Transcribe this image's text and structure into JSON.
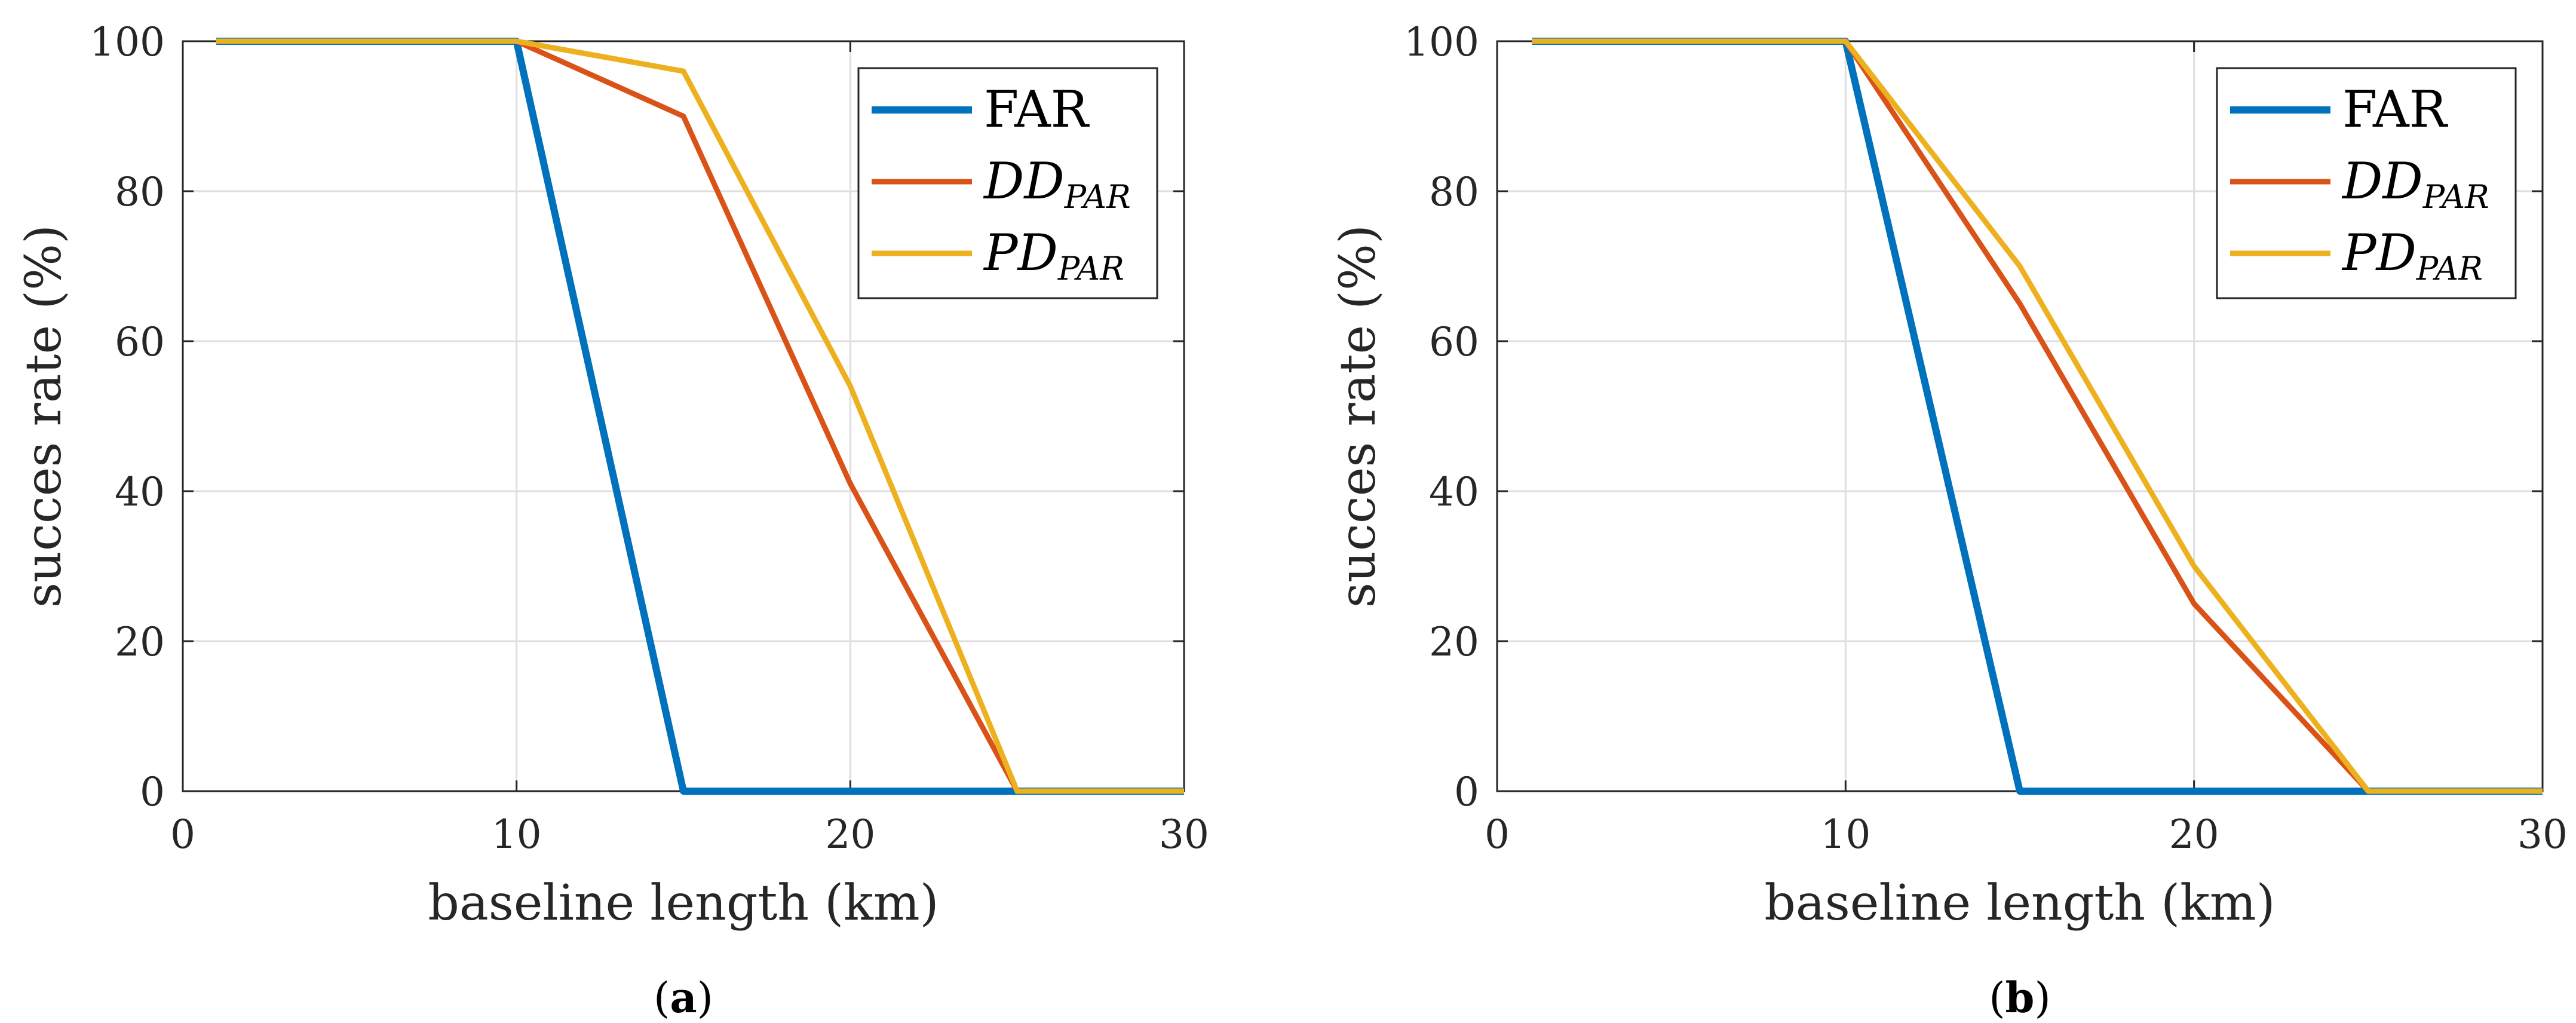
{
  "chart_data": [
    {
      "type": "line",
      "panel_label": "a",
      "xlabel": "baseline length (km)",
      "ylabel": "succes rate (%)",
      "xlim": [
        0,
        30
      ],
      "ylim": [
        0,
        100
      ],
      "xticks": [
        0,
        10,
        20,
        30
      ],
      "yticks": [
        0,
        20,
        40,
        60,
        80,
        100
      ],
      "grid": true,
      "legend_position": "top-right",
      "series": [
        {
          "name": "FAR",
          "base": "FAR",
          "sub": "",
          "color": "#0072BD",
          "x": [
            1,
            10,
            15,
            20,
            25,
            30
          ],
          "y": [
            100,
            100,
            0,
            0,
            0,
            0
          ]
        },
        {
          "name": "DD_PAR",
          "base": "DD",
          "sub": "PAR",
          "color": "#D95319",
          "x": [
            1,
            10,
            15,
            20,
            25,
            30
          ],
          "y": [
            100,
            100,
            90,
            41,
            0,
            0
          ]
        },
        {
          "name": "PD_PAR",
          "base": "PD",
          "sub": "PAR",
          "color": "#EDB120",
          "x": [
            1,
            10,
            15,
            20,
            25,
            30
          ],
          "y": [
            100,
            100,
            96,
            54,
            0,
            0
          ]
        }
      ]
    },
    {
      "type": "line",
      "panel_label": "b",
      "xlabel": "baseline length (km)",
      "ylabel": "succes rate (%)",
      "xlim": [
        0,
        30
      ],
      "ylim": [
        0,
        100
      ],
      "xticks": [
        0,
        10,
        20,
        30
      ],
      "yticks": [
        0,
        20,
        40,
        60,
        80,
        100
      ],
      "grid": true,
      "legend_position": "top-right",
      "series": [
        {
          "name": "FAR",
          "base": "FAR",
          "sub": "",
          "color": "#0072BD",
          "x": [
            1,
            10,
            15,
            20,
            25,
            30
          ],
          "y": [
            100,
            100,
            0,
            0,
            0,
            0
          ]
        },
        {
          "name": "DD_PAR",
          "base": "DD",
          "sub": "PAR",
          "color": "#D95319",
          "x": [
            1,
            10,
            15,
            20,
            25,
            30
          ],
          "y": [
            100,
            100,
            65,
            25,
            0,
            0
          ]
        },
        {
          "name": "PD_PAR",
          "base": "PD",
          "sub": "PAR",
          "color": "#EDB120",
          "x": [
            1,
            10,
            15,
            20,
            25,
            30
          ],
          "y": [
            100,
            100,
            70,
            30,
            0,
            0
          ]
        }
      ]
    }
  ]
}
